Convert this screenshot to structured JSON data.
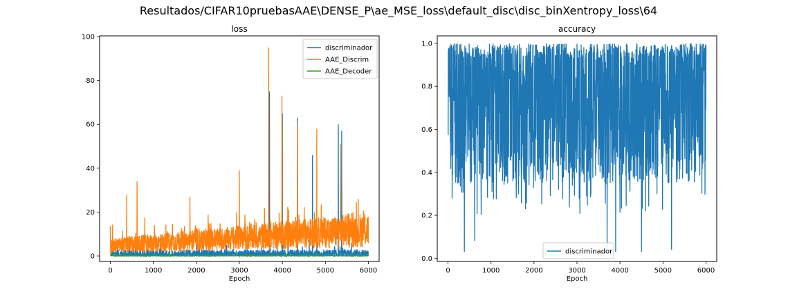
{
  "figure": {
    "suptitle": "Resultados/CIFAR10pruebasAAE\\DENSE_P\\ae_MSE_loss\\default_disc\\disc_binXentropy_loss\\64"
  },
  "chart_data": [
    {
      "type": "line",
      "title": "loss",
      "xlabel": "Epoch",
      "ylabel": "",
      "xlim": [
        -250,
        6250
      ],
      "ylim": [
        -2.5,
        100.3
      ],
      "xticks": [
        0,
        1000,
        2000,
        3000,
        4000,
        5000,
        6000
      ],
      "yticks": [
        0,
        20,
        40,
        60,
        80,
        100
      ],
      "legend_position": "upper right",
      "grid": false,
      "series": [
        {
          "name": "discriminador",
          "color": "#1f77b4",
          "description_values": {
            "typical_range": [
              0,
              3
            ],
            "spikes": [
              [
                3700,
                75
              ],
              [
                4000,
                65
              ],
              [
                4350,
                63
              ],
              [
                4700,
                46
              ],
              [
                5300,
                60
              ],
              [
                5380,
                57
              ]
            ]
          }
        },
        {
          "name": "AAE_Discrim",
          "color": "#ff7f0e",
          "description_values": {
            "typical_range_start": [
              1,
              8
            ],
            "typical_range_end": [
              4,
              20
            ],
            "spikes": [
              [
                380,
                28
              ],
              [
                620,
                34
              ],
              [
                1850,
                27
              ],
              [
                3000,
                39
              ],
              [
                3680,
                95
              ],
              [
                3990,
                73
              ],
              [
                4350,
                60
              ],
              [
                4800,
                58
              ],
              [
                5350,
                51
              ]
            ]
          }
        },
        {
          "name": "AAE_Decoder",
          "color": "#2ca02c",
          "description_values": {
            "typical_range": [
              0,
              0.3
            ]
          }
        }
      ]
    },
    {
      "type": "line",
      "title": "accuracy",
      "xlabel": "Epoch",
      "ylabel": "",
      "xlim": [
        -250,
        6250
      ],
      "ylim": [
        -0.015,
        1.035
      ],
      "xticks": [
        0,
        1000,
        2000,
        3000,
        4000,
        5000,
        6000
      ],
      "yticks": [
        0.0,
        0.2,
        0.4,
        0.6,
        0.8,
        1.0
      ],
      "legend_position": "lower center",
      "grid": false,
      "series": [
        {
          "name": "discriminador",
          "color": "#1f77b4",
          "description_values": {
            "typical_range": [
              0.35,
              1.0
            ],
            "dips": [
              [
                380,
                0.03
              ],
              [
                620,
                0.08
              ],
              [
                3700,
                0.05
              ],
              [
                3900,
                0.03
              ],
              [
                4500,
                0.03
              ],
              [
                5200,
                0.04
              ]
            ]
          }
        }
      ]
    }
  ]
}
